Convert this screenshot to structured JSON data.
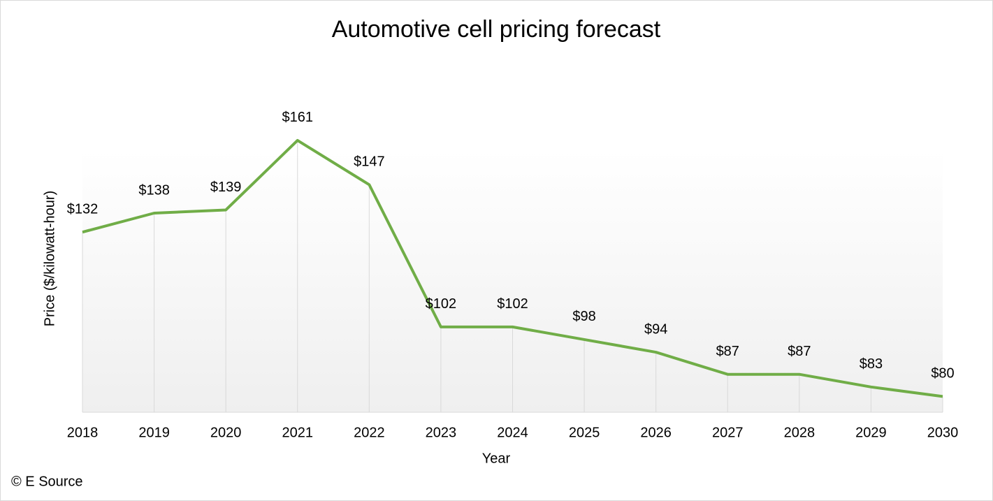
{
  "chart_data": {
    "type": "line",
    "title": "Automotive cell pricing forecast",
    "x_label": "Year",
    "y_label": "Price ($/kilowatt-hour)",
    "source": "© E Source",
    "categories": [
      "2018",
      "2019",
      "2020",
      "2021",
      "2022",
      "2023",
      "2024",
      "2025",
      "2026",
      "2027",
      "2028",
      "2029",
      "2030"
    ],
    "series": [
      {
        "name": "Price",
        "color": "#70ad47",
        "values": [
          132,
          138,
          139,
          161,
          147,
          102,
          102,
          98,
          94,
          87,
          87,
          83,
          80
        ],
        "value_labels": [
          "$132",
          "$138",
          "$139",
          "$161",
          "$147",
          "$102",
          "$102",
          "$98",
          "$94",
          "$87",
          "$87",
          "$83",
          "$80"
        ]
      }
    ],
    "ylim": [
      75,
      180
    ],
    "drop_lines": true
  }
}
